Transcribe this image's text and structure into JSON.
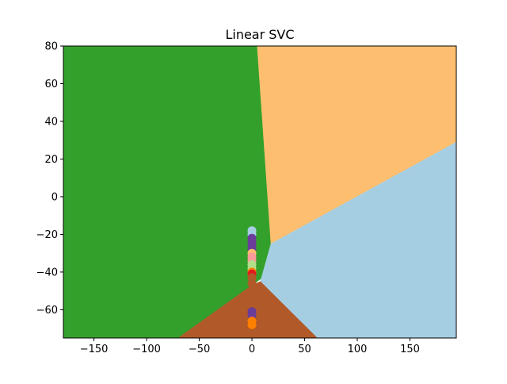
{
  "chart_data": {
    "type": "scatter",
    "title": "Linear SVC",
    "xlabel": "",
    "ylabel": "",
    "xlim": [
      -179,
      194
    ],
    "ylim": [
      -75,
      80
    ],
    "grid": false,
    "x_ticks": [
      -150,
      -100,
      -50,
      0,
      50,
      100,
      150
    ],
    "x_tick_labels": [
      "−150",
      "−100",
      "−50",
      "0",
      "50",
      "100",
      "150"
    ],
    "y_ticks": [
      -60,
      -40,
      -20,
      0,
      20,
      40,
      60,
      80
    ],
    "y_tick_labels": [
      "−60",
      "−40",
      "−20",
      "0",
      "20",
      "40",
      "60",
      "80"
    ],
    "decision_regions": [
      {
        "color": "#33a02c",
        "polygon": [
          [
            -179,
            80
          ],
          [
            5,
            80
          ],
          [
            18,
            -25
          ],
          [
            10,
            -43
          ],
          [
            0,
            -47
          ],
          [
            -70,
            -75
          ],
          [
            -179,
            -75
          ]
        ]
      },
      {
        "color": "#fdbf6f",
        "polygon": [
          [
            5,
            80
          ],
          [
            194,
            80
          ],
          [
            194,
            29
          ],
          [
            18,
            -25
          ]
        ]
      },
      {
        "color": "#a6cee3",
        "polygon": [
          [
            194,
            29
          ],
          [
            194,
            -75
          ],
          [
            62,
            -75
          ],
          [
            8,
            -45
          ],
          [
            18,
            -25
          ]
        ]
      },
      {
        "color": "#b15928",
        "polygon": [
          [
            -70,
            -75
          ],
          [
            0,
            -47
          ],
          [
            8,
            -45
          ],
          [
            62,
            -75
          ]
        ]
      }
    ],
    "points": [
      {
        "x": 0,
        "y": -18,
        "color": "#a6cee3"
      },
      {
        "x": 0,
        "y": -20,
        "color": "#a6cee3"
      },
      {
        "x": 0,
        "y": -22,
        "color": "#6a3d9a"
      },
      {
        "x": 0,
        "y": -24,
        "color": "#6a3d9a"
      },
      {
        "x": 0,
        "y": -26,
        "color": "#6a3d9a"
      },
      {
        "x": 0,
        "y": -28,
        "color": "#6a3d9a"
      },
      {
        "x": 0,
        "y": -30,
        "color": "#fdbf6f"
      },
      {
        "x": 0,
        "y": -32,
        "color": "#fb9a99"
      },
      {
        "x": 0,
        "y": -34,
        "color": "#fb9a99"
      },
      {
        "x": 0,
        "y": -36,
        "color": "#b2df8a"
      },
      {
        "x": 0,
        "y": -38,
        "color": "#b2df8a"
      },
      {
        "x": 0,
        "y": -40,
        "color": "#ff7f00"
      },
      {
        "x": 0,
        "y": -41,
        "color": "#e31a1c"
      },
      {
        "x": 0,
        "y": -43,
        "color": "#b15928"
      },
      {
        "x": 0,
        "y": -46,
        "color": "#b15928"
      },
      {
        "x": 0,
        "y": -50,
        "color": "#b15928"
      },
      {
        "x": 0,
        "y": -54,
        "color": "#b15928"
      },
      {
        "x": 0,
        "y": -58,
        "color": "#b15928"
      },
      {
        "x": 0,
        "y": -61,
        "color": "#6a3d9a"
      },
      {
        "x": 0,
        "y": -63,
        "color": "#6a3d9a"
      },
      {
        "x": 0,
        "y": -66,
        "color": "#ff7f00"
      },
      {
        "x": 0,
        "y": -68,
        "color": "#ff7f00"
      }
    ]
  }
}
